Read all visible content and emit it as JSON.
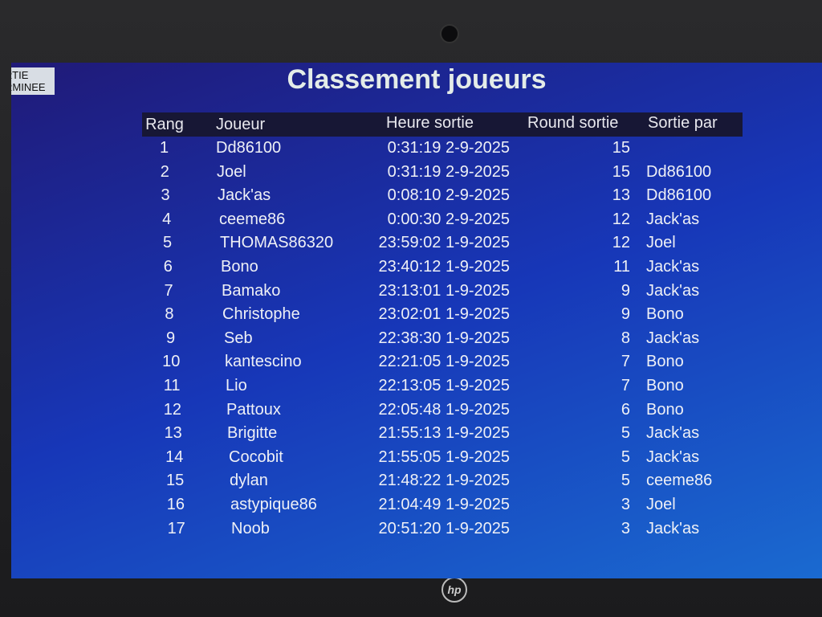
{
  "status_badge": [
    "RTIE",
    "RMINEE"
  ],
  "title": "Classement joueurs",
  "columns": {
    "rang": "Rang",
    "joueur": "Joueur",
    "heure": "Heure sortie",
    "round": "Round sortie",
    "par": "Sortie par"
  },
  "rows": [
    {
      "rang": "1",
      "joueur": "Dd86100",
      "heure": "0:31:19 2-9-2025",
      "round": "15",
      "par": ""
    },
    {
      "rang": "2",
      "joueur": "Joel",
      "heure": "0:31:19 2-9-2025",
      "round": "15",
      "par": "Dd86100"
    },
    {
      "rang": "3",
      "joueur": "Jack'as",
      "heure": "0:08:10 2-9-2025",
      "round": "13",
      "par": "Dd86100"
    },
    {
      "rang": "4",
      "joueur": "ceeme86",
      "heure": "0:00:30 2-9-2025",
      "round": "12",
      "par": "Jack'as"
    },
    {
      "rang": "5",
      "joueur": "THOMAS86320",
      "heure": "23:59:02 1-9-2025",
      "round": "12",
      "par": "Joel"
    },
    {
      "rang": "6",
      "joueur": "Bono",
      "heure": "23:40:12 1-9-2025",
      "round": "11",
      "par": "Jack'as"
    },
    {
      "rang": "7",
      "joueur": "Bamako",
      "heure": "23:13:01 1-9-2025",
      "round": "9",
      "par": "Jack'as"
    },
    {
      "rang": "8",
      "joueur": "Christophe",
      "heure": "23:02:01 1-9-2025",
      "round": "9",
      "par": "Bono"
    },
    {
      "rang": "9",
      "joueur": "Seb",
      "heure": "22:38:30 1-9-2025",
      "round": "8",
      "par": "Jack'as"
    },
    {
      "rang": "10",
      "joueur": "kantescino",
      "heure": "22:21:05 1-9-2025",
      "round": "7",
      "par": "Bono"
    },
    {
      "rang": "11",
      "joueur": "Lio",
      "heure": "22:13:05 1-9-2025",
      "round": "7",
      "par": "Bono"
    },
    {
      "rang": "12",
      "joueur": "Pattoux",
      "heure": "22:05:48 1-9-2025",
      "round": "6",
      "par": "Bono"
    },
    {
      "rang": "13",
      "joueur": "Brigitte",
      "heure": "21:55:13 1-9-2025",
      "round": "5",
      "par": "Jack'as"
    },
    {
      "rang": "14",
      "joueur": "Cocobit",
      "heure": "21:55:05 1-9-2025",
      "round": "5",
      "par": "Jack'as"
    },
    {
      "rang": "15",
      "joueur": "dylan",
      "heure": "21:48:22 1-9-2025",
      "round": "5",
      "par": "ceeme86"
    },
    {
      "rang": "16",
      "joueur": "astypique86",
      "heure": "21:04:49 1-9-2025",
      "round": "3",
      "par": "Joel"
    },
    {
      "rang": "17",
      "joueur": "Noob",
      "heure": "20:51:20 1-9-2025",
      "round": "3",
      "par": "Jack'as"
    }
  ],
  "laptop_logo": "hp"
}
